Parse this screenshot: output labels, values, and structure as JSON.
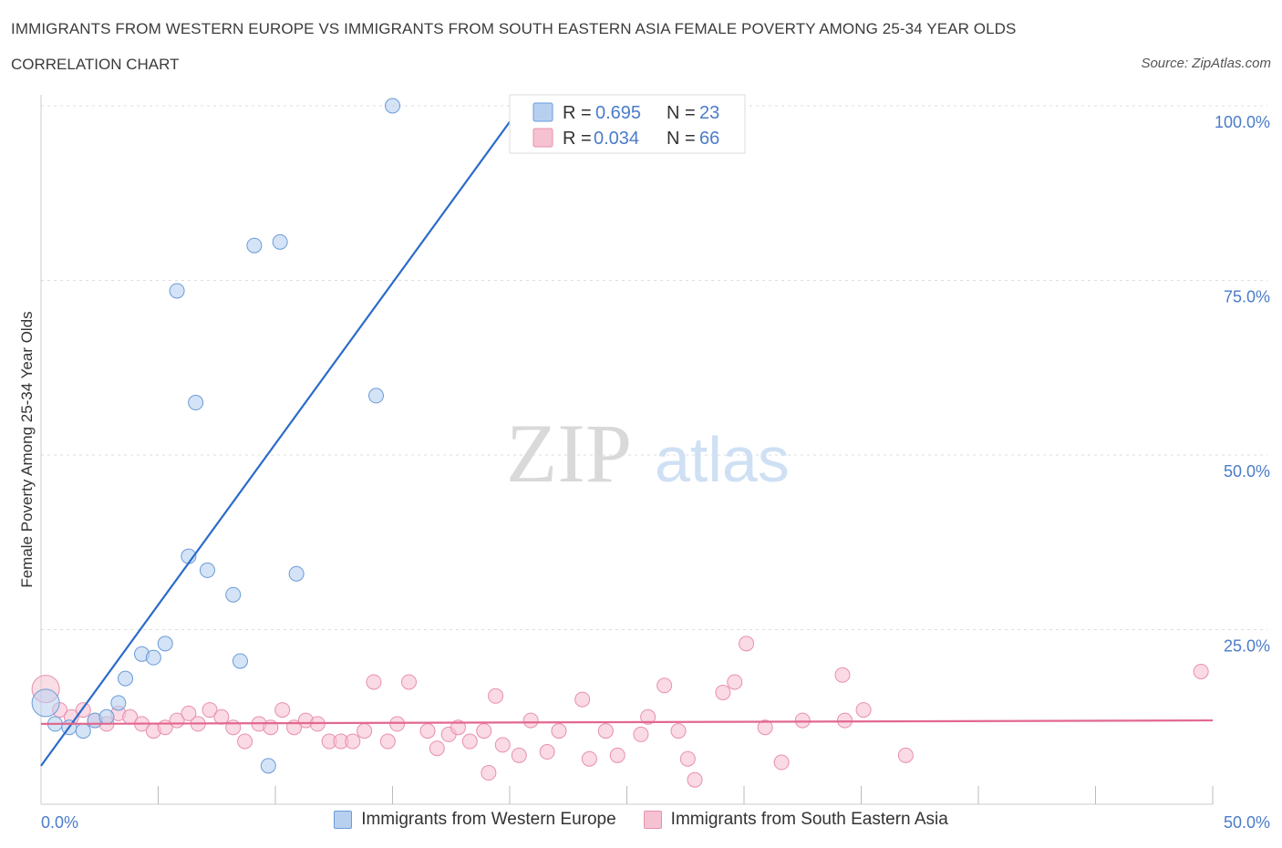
{
  "header": {
    "title": "IMMIGRANTS FROM WESTERN EUROPE VS IMMIGRANTS FROM SOUTH EASTERN ASIA FEMALE POVERTY AMONG 25-34 YEAR OLDS",
    "subtitle": "CORRELATION CHART",
    "source": "Source: ZipAtlas.com"
  },
  "watermark": {
    "zip": "ZIP",
    "atlas": "atlas"
  },
  "legend_box": {
    "rows": [
      {
        "r_label": "R =",
        "r_value": "0.695",
        "n_label": "N =",
        "n_value": "23"
      },
      {
        "r_label": "R =",
        "r_value": "0.034",
        "n_label": "N =",
        "n_value": "66"
      }
    ]
  },
  "colors": {
    "blue_fill": "#b8d0f0",
    "blue_stroke": "#6a9bd8",
    "blue_line": "#2a6cc8",
    "pink_fill": "#f6c2d2",
    "pink_stroke": "#e890ac",
    "pink_line": "#e2688f",
    "tick_text": "#4a7cc8",
    "grid": "#dddddd"
  },
  "chart_data": {
    "type": "scatter",
    "title": "IMMIGRANTS FROM WESTERN EUROPE VS IMMIGRANTS FROM SOUTH EASTERN ASIA FEMALE POVERTY AMONG 25-34 YEAR OLDS",
    "xlabel": "",
    "ylabel": "Female Poverty Among 25-34 Year Olds",
    "xlim": [
      0,
      50
    ],
    "ylim": [
      0,
      100
    ],
    "x_tick_labels": [
      {
        "value": 0,
        "label": "0.0%"
      },
      {
        "value": 50,
        "label": "50.0%"
      }
    ],
    "y_tick_labels": [
      {
        "value": 25,
        "label": "25.0%"
      },
      {
        "value": 50,
        "label": "50.0%"
      },
      {
        "value": 75,
        "label": "75.0%"
      },
      {
        "value": 100,
        "label": "100.0%"
      }
    ],
    "x_minor_ticks": [
      5,
      10,
      15,
      20,
      25,
      30,
      35,
      40,
      45
    ],
    "series": [
      {
        "name": "Immigrants from Western Europe",
        "color": "#6a9bd8",
        "R": 0.695,
        "N": 23,
        "trend": {
          "x": [
            0,
            20.5
          ],
          "y": [
            5.5,
            100
          ]
        },
        "points": [
          {
            "x": 0.2,
            "y": 14.5,
            "big": true
          },
          {
            "x": 0.6,
            "y": 11.5
          },
          {
            "x": 1.2,
            "y": 11.0
          },
          {
            "x": 1.8,
            "y": 10.5
          },
          {
            "x": 2.3,
            "y": 12.0
          },
          {
            "x": 2.8,
            "y": 12.5
          },
          {
            "x": 3.3,
            "y": 14.5
          },
          {
            "x": 3.6,
            "y": 18.0
          },
          {
            "x": 4.3,
            "y": 21.5
          },
          {
            "x": 4.8,
            "y": 21.0
          },
          {
            "x": 5.3,
            "y": 23.0
          },
          {
            "x": 5.8,
            "y": 73.5
          },
          {
            "x": 6.3,
            "y": 35.5
          },
          {
            "x": 6.6,
            "y": 57.5
          },
          {
            "x": 7.1,
            "y": 33.5
          },
          {
            "x": 8.2,
            "y": 30.0
          },
          {
            "x": 8.5,
            "y": 20.5
          },
          {
            "x": 9.1,
            "y": 80.0
          },
          {
            "x": 9.7,
            "y": 5.5
          },
          {
            "x": 10.2,
            "y": 80.5
          },
          {
            "x": 10.9,
            "y": 33.0
          },
          {
            "x": 14.3,
            "y": 58.5
          },
          {
            "x": 15.0,
            "y": 100.0
          }
        ]
      },
      {
        "name": "Immigrants from South Eastern Asia",
        "color": "#e890ac",
        "R": 0.034,
        "N": 66,
        "trend": {
          "x": [
            0,
            50
          ],
          "y": [
            11.5,
            12.0
          ]
        },
        "points": [
          {
            "x": 0.2,
            "y": 16.5,
            "big": true
          },
          {
            "x": 0.8,
            "y": 13.5
          },
          {
            "x": 1.3,
            "y": 12.5
          },
          {
            "x": 1.8,
            "y": 13.5
          },
          {
            "x": 2.3,
            "y": 12.0
          },
          {
            "x": 2.8,
            "y": 11.5
          },
          {
            "x": 3.3,
            "y": 13.0
          },
          {
            "x": 3.8,
            "y": 12.5
          },
          {
            "x": 4.3,
            "y": 11.5
          },
          {
            "x": 4.8,
            "y": 10.5
          },
          {
            "x": 5.3,
            "y": 11.0
          },
          {
            "x": 5.8,
            "y": 12.0
          },
          {
            "x": 6.3,
            "y": 13.0
          },
          {
            "x": 6.7,
            "y": 11.5
          },
          {
            "x": 7.2,
            "y": 13.5
          },
          {
            "x": 7.7,
            "y": 12.5
          },
          {
            "x": 8.2,
            "y": 11.0
          },
          {
            "x": 8.7,
            "y": 9.0
          },
          {
            "x": 9.3,
            "y": 11.5
          },
          {
            "x": 9.8,
            "y": 11.0
          },
          {
            "x": 10.3,
            "y": 13.5
          },
          {
            "x": 10.8,
            "y": 11.0
          },
          {
            "x": 11.3,
            "y": 12.0
          },
          {
            "x": 11.8,
            "y": 11.5
          },
          {
            "x": 12.3,
            "y": 9.0
          },
          {
            "x": 12.8,
            "y": 9.0
          },
          {
            "x": 13.3,
            "y": 9.0
          },
          {
            "x": 13.8,
            "y": 10.5
          },
          {
            "x": 14.2,
            "y": 17.5
          },
          {
            "x": 14.8,
            "y": 9.0
          },
          {
            "x": 15.2,
            "y": 11.5
          },
          {
            "x": 15.7,
            "y": 17.5
          },
          {
            "x": 16.5,
            "y": 10.5
          },
          {
            "x": 16.9,
            "y": 8.0
          },
          {
            "x": 17.4,
            "y": 10.0
          },
          {
            "x": 17.8,
            "y": 11.0
          },
          {
            "x": 18.3,
            "y": 9.0
          },
          {
            "x": 18.9,
            "y": 10.5
          },
          {
            "x": 19.1,
            "y": 4.5
          },
          {
            "x": 19.4,
            "y": 15.5
          },
          {
            "x": 19.7,
            "y": 8.5
          },
          {
            "x": 20.4,
            "y": 7.0
          },
          {
            "x": 20.9,
            "y": 12.0
          },
          {
            "x": 21.6,
            "y": 7.5
          },
          {
            "x": 22.1,
            "y": 10.5
          },
          {
            "x": 23.1,
            "y": 15.0
          },
          {
            "x": 23.4,
            "y": 6.5
          },
          {
            "x": 24.1,
            "y": 10.5
          },
          {
            "x": 24.6,
            "y": 7.0
          },
          {
            "x": 25.6,
            "y": 10.0
          },
          {
            "x": 25.9,
            "y": 12.5
          },
          {
            "x": 26.6,
            "y": 17.0
          },
          {
            "x": 27.2,
            "y": 10.5
          },
          {
            "x": 27.6,
            "y": 6.5
          },
          {
            "x": 27.9,
            "y": 3.5
          },
          {
            "x": 29.1,
            "y": 16.0
          },
          {
            "x": 29.6,
            "y": 17.5
          },
          {
            "x": 30.1,
            "y": 23.0
          },
          {
            "x": 30.9,
            "y": 11.0
          },
          {
            "x": 31.6,
            "y": 6.0
          },
          {
            "x": 32.5,
            "y": 12.0
          },
          {
            "x": 34.2,
            "y": 18.5
          },
          {
            "x": 34.3,
            "y": 12.0
          },
          {
            "x": 35.1,
            "y": 13.5
          },
          {
            "x": 36.9,
            "y": 7.0
          },
          {
            "x": 49.5,
            "y": 19.0
          }
        ]
      }
    ],
    "legend_position": "bottom-center"
  }
}
